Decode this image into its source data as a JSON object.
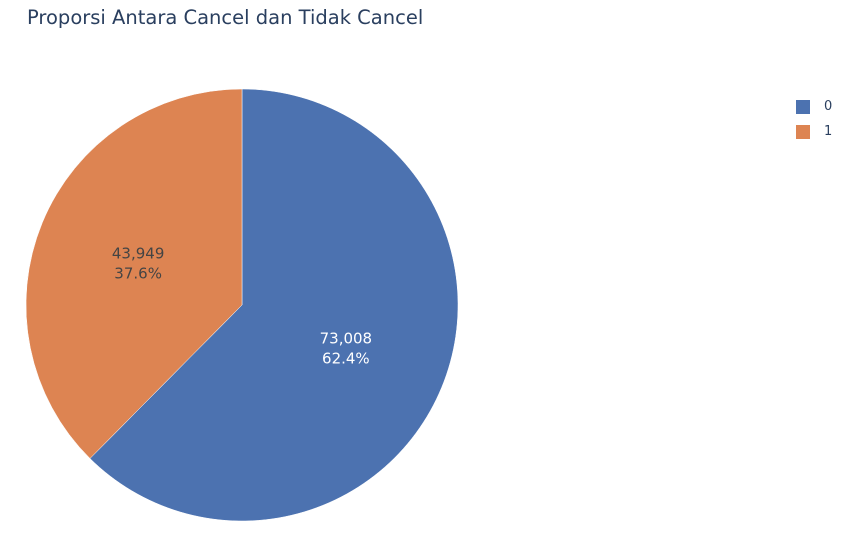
{
  "chart_data": {
    "type": "pie",
    "title": "Proporsi Antara Cancel dan Tidak Cancel",
    "categories": [
      "0",
      "1"
    ],
    "values": [
      73008,
      43949
    ],
    "value_labels": [
      "73,008",
      "43,949"
    ],
    "percent_labels": [
      "62.4%",
      "37.6%"
    ],
    "colors": [
      "#4c72b0",
      "#dd8452"
    ],
    "label_colors": [
      "#ffffff",
      "#444444"
    ],
    "legend": "top-right"
  }
}
